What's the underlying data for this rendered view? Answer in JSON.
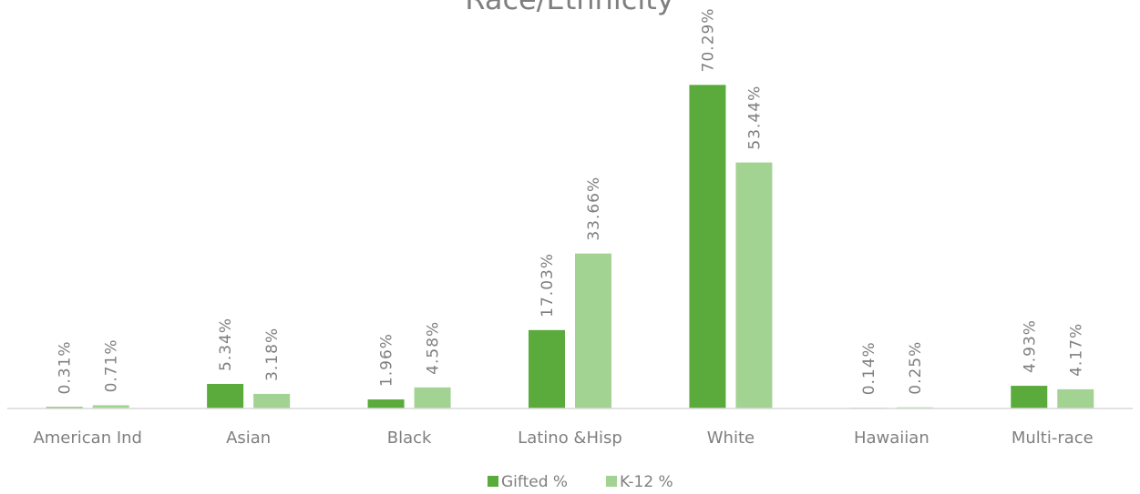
{
  "chart_data": {
    "type": "bar",
    "title": "Race/Ethnicity",
    "categories": [
      "American Ind",
      "Asian",
      "Black",
      "Latino &Hisp",
      "White",
      "Hawaiian",
      "Multi-race"
    ],
    "series": [
      {
        "name": "Gifted %",
        "color": "#5aaa3c",
        "values": [
          0.31,
          5.34,
          1.96,
          17.03,
          70.29,
          0.14,
          4.93
        ],
        "labels": [
          "0.31%",
          "5.34%",
          "1.96%",
          "17.03%",
          "70.29%",
          "0.14%",
          "4.93%"
        ]
      },
      {
        "name": "K-12 %",
        "color": "#a3d393",
        "values": [
          0.71,
          3.18,
          4.58,
          33.66,
          53.44,
          0.25,
          4.17
        ],
        "labels": [
          "0.71%",
          "3.18%",
          "4.58%",
          "33.66%",
          "53.44%",
          "0.25%",
          "4.17%"
        ]
      }
    ],
    "ylim": [
      0,
      80
    ],
    "grid": false,
    "legend": "bottom",
    "axis_color": "#d9d9d9",
    "text_color": "#7f7f7f"
  }
}
